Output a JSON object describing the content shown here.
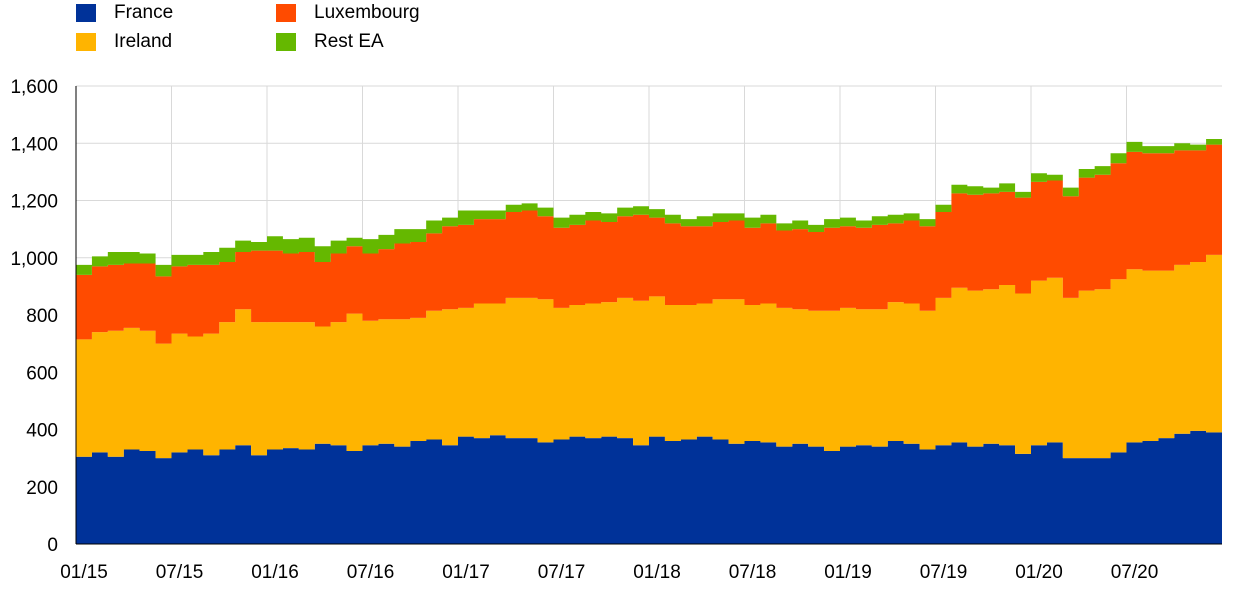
{
  "chart_data": {
    "type": "area",
    "stacked": true,
    "step": true,
    "grid": true,
    "legend_position": "top-left",
    "ylim": [
      0,
      1600
    ],
    "yticks": [
      0,
      200,
      400,
      600,
      800,
      1000,
      1200,
      1400,
      1600
    ],
    "ytick_labels": [
      "0",
      "200",
      "400",
      "600",
      "800",
      "1,000",
      "1,200",
      "1,400",
      "1,600"
    ],
    "xtick_labels": [
      "01/15",
      "07/15",
      "01/16",
      "07/16",
      "01/17",
      "07/17",
      "01/18",
      "07/18",
      "01/19",
      "07/19",
      "01/20",
      "07/20"
    ],
    "months": [
      "01/15",
      "02/15",
      "03/15",
      "04/15",
      "05/15",
      "06/15",
      "07/15",
      "08/15",
      "09/15",
      "10/15",
      "11/15",
      "12/15",
      "01/16",
      "02/16",
      "03/16",
      "04/16",
      "05/16",
      "06/16",
      "07/16",
      "08/16",
      "09/16",
      "10/16",
      "11/16",
      "12/16",
      "01/17",
      "02/17",
      "03/17",
      "04/17",
      "05/17",
      "06/17",
      "07/17",
      "08/17",
      "09/17",
      "10/17",
      "11/17",
      "12/17",
      "01/18",
      "02/18",
      "03/18",
      "04/18",
      "05/18",
      "06/18",
      "07/18",
      "08/18",
      "09/18",
      "10/18",
      "11/18",
      "12/18",
      "01/19",
      "02/19",
      "03/19",
      "04/19",
      "05/19",
      "06/19",
      "07/19",
      "08/19",
      "09/19",
      "10/19",
      "11/19",
      "12/19",
      "01/20",
      "02/20",
      "03/20",
      "04/20",
      "05/20",
      "06/20",
      "07/20",
      "08/20",
      "09/20",
      "10/20",
      "11/20",
      "12/20"
    ],
    "series": [
      {
        "name": "France",
        "color": "#003299",
        "values": [
          305,
          320,
          305,
          330,
          325,
          300,
          320,
          330,
          310,
          330,
          345,
          310,
          330,
          335,
          330,
          350,
          345,
          325,
          345,
          350,
          340,
          360,
          365,
          345,
          375,
          370,
          380,
          370,
          370,
          355,
          365,
          375,
          370,
          375,
          370,
          345,
          375,
          360,
          365,
          375,
          365,
          350,
          360,
          355,
          340,
          350,
          340,
          325,
          340,
          345,
          340,
          360,
          350,
          330,
          345,
          355,
          340,
          350,
          345,
          315,
          345,
          355,
          300,
          300,
          300,
          320,
          355,
          360,
          370,
          385,
          395,
          390
        ]
      },
      {
        "name": "Ireland",
        "color": "#FFB400",
        "values": [
          410,
          420,
          440,
          425,
          420,
          400,
          415,
          395,
          425,
          445,
          475,
          465,
          445,
          440,
          445,
          410,
          430,
          480,
          435,
          435,
          445,
          430,
          450,
          475,
          450,
          470,
          460,
          490,
          490,
          500,
          460,
          460,
          470,
          470,
          490,
          505,
          490,
          475,
          470,
          465,
          490,
          505,
          475,
          485,
          485,
          470,
          475,
          490,
          485,
          475,
          480,
          485,
          490,
          485,
          515,
          540,
          545,
          540,
          560,
          560,
          575,
          575,
          560,
          585,
          590,
          605,
          605,
          595,
          585,
          590,
          590,
          620
        ]
      },
      {
        "name": "Luxembourg",
        "color": "#FF4B00",
        "values": [
          225,
          230,
          230,
          225,
          235,
          235,
          235,
          250,
          240,
          210,
          200,
          250,
          250,
          240,
          245,
          225,
          240,
          235,
          235,
          245,
          265,
          265,
          270,
          290,
          290,
          295,
          295,
          300,
          305,
          290,
          280,
          280,
          290,
          280,
          285,
          300,
          275,
          285,
          275,
          270,
          270,
          275,
          270,
          280,
          270,
          280,
          275,
          290,
          285,
          285,
          295,
          275,
          290,
          295,
          300,
          330,
          335,
          335,
          325,
          335,
          345,
          340,
          355,
          395,
          400,
          405,
          410,
          410,
          410,
          400,
          390,
          385
        ]
      },
      {
        "name": "Rest EA",
        "color": "#65B800",
        "values": [
          35,
          35,
          45,
          40,
          35,
          40,
          40,
          35,
          45,
          50,
          40,
          30,
          50,
          50,
          50,
          55,
          45,
          30,
          50,
          50,
          50,
          45,
          45,
          30,
          50,
          30,
          30,
          25,
          25,
          30,
          35,
          35,
          30,
          30,
          30,
          30,
          30,
          30,
          25,
          35,
          30,
          25,
          35,
          30,
          25,
          30,
          25,
          30,
          30,
          25,
          30,
          30,
          25,
          25,
          25,
          30,
          30,
          20,
          30,
          20,
          30,
          20,
          30,
          30,
          30,
          35,
          35,
          25,
          25,
          25,
          20,
          20
        ]
      }
    ]
  }
}
